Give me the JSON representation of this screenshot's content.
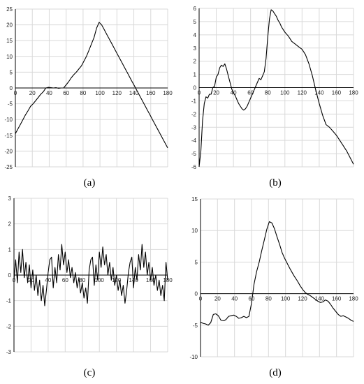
{
  "chart_data": [
    {
      "type": "line",
      "caption": "(a)",
      "xlim": [
        0,
        180
      ],
      "ylim": [
        -25,
        25
      ],
      "xticks": [
        0,
        20,
        40,
        60,
        80,
        100,
        120,
        140,
        160,
        180
      ],
      "yticks": [
        -25,
        -20,
        -15,
        -10,
        -5,
        0,
        5,
        10,
        15,
        20,
        25
      ],
      "grid": true,
      "series": [
        {
          "x": [
            0,
            3,
            6,
            9,
            12,
            15,
            18,
            21,
            24,
            27,
            30,
            33,
            36,
            39,
            42,
            45,
            48,
            51,
            54,
            57,
            60,
            63,
            66,
            69,
            72,
            75,
            78,
            81,
            84,
            87,
            90,
            93,
            96,
            99,
            102,
            105,
            108,
            111,
            114,
            117,
            120,
            123,
            126,
            129,
            132,
            135,
            138,
            141,
            144,
            147,
            150,
            153,
            156,
            159,
            162,
            165,
            168,
            171,
            174,
            177,
            180
          ],
          "y": [
            -14.5,
            -13,
            -11.5,
            -10,
            -8.5,
            -7.2,
            -5.8,
            -5,
            -4,
            -3,
            -2,
            -1.2,
            0,
            0.2,
            0.1,
            0,
            0.1,
            -0.1,
            0,
            0,
            1,
            2,
            3.2,
            4.2,
            5,
            6,
            7,
            8.5,
            10,
            12,
            14,
            16,
            19,
            20.8,
            20,
            18.5,
            17,
            15.5,
            14,
            12.5,
            11,
            9.5,
            8,
            6.5,
            5,
            3.5,
            2,
            0.5,
            -1,
            -2.5,
            -4,
            -5.5,
            -7,
            -8.5,
            -10,
            -11.5,
            -13,
            -14.5,
            -16,
            -17.5,
            -19
          ]
        }
      ]
    },
    {
      "type": "line",
      "caption": "(b)",
      "xlim": [
        0,
        180
      ],
      "ylim": [
        -6,
        6
      ],
      "xticks": [
        0,
        20,
        40,
        60,
        80,
        100,
        120,
        140,
        160,
        180
      ],
      "yticks": [
        -6,
        -5,
        -4,
        -3,
        -2,
        -1,
        0,
        1,
        2,
        3,
        4,
        5,
        6
      ],
      "grid": true,
      "series": [
        {
          "x": [
            0,
            2,
            4,
            6,
            8,
            10,
            12,
            14,
            16,
            18,
            20,
            22,
            24,
            26,
            28,
            30,
            32,
            34,
            36,
            38,
            40,
            42,
            44,
            46,
            48,
            50,
            52,
            54,
            56,
            58,
            60,
            62,
            64,
            66,
            68,
            70,
            72,
            74,
            76,
            78,
            80,
            82,
            84,
            86,
            88,
            90,
            92,
            94,
            96,
            98,
            100,
            104,
            108,
            112,
            116,
            120,
            124,
            128,
            132,
            136,
            140,
            144,
            148,
            152,
            156,
            160,
            164,
            168,
            172,
            176,
            180
          ],
          "y": [
            -6,
            -4.8,
            -2.5,
            -1.2,
            -0.7,
            -0.8,
            -0.5,
            -0.5,
            0,
            0.1,
            0.8,
            1.0,
            1.5,
            1.7,
            1.6,
            1.8,
            1.4,
            0.9,
            0.4,
            -0.1,
            -0.4,
            -0.6,
            -0.9,
            -1.2,
            -1.4,
            -1.6,
            -1.7,
            -1.6,
            -1.4,
            -1.1,
            -0.8,
            -0.5,
            -0.2,
            0.1,
            0.4,
            0.7,
            0.6,
            0.9,
            1.2,
            2.2,
            3.8,
            5.2,
            5.9,
            5.8,
            5.6,
            5.4,
            5.1,
            4.9,
            4.6,
            4.4,
            4.2,
            3.9,
            3.5,
            3.3,
            3.1,
            2.9,
            2.5,
            1.8,
            0.9,
            -0.2,
            -1.2,
            -2.1,
            -2.8,
            -3.0,
            -3.3,
            -3.6,
            -4.0,
            -4.4,
            -4.8,
            -5.3,
            -5.8
          ]
        }
      ]
    },
    {
      "type": "line",
      "caption": "(c)",
      "xlim": [
        0,
        180
      ],
      "ylim": [
        -3,
        3
      ],
      "xticks": [
        0,
        20,
        40,
        60,
        80,
        100,
        120,
        140,
        160,
        180
      ],
      "yticks": [
        -3,
        -2,
        -1,
        0,
        1,
        2,
        3
      ],
      "grid": true,
      "series": [
        {
          "x": [
            0,
            2,
            4,
            6,
            8,
            10,
            12,
            14,
            16,
            18,
            20,
            22,
            24,
            26,
            28,
            30,
            32,
            34,
            36,
            38,
            40,
            42,
            44,
            46,
            48,
            50,
            52,
            54,
            56,
            58,
            60,
            62,
            64,
            66,
            68,
            70,
            72,
            74,
            76,
            78,
            80,
            82,
            84,
            86,
            88,
            90,
            92,
            94,
            96,
            98,
            100,
            102,
            104,
            106,
            108,
            110,
            112,
            114,
            116,
            118,
            120,
            122,
            124,
            126,
            128,
            130,
            132,
            134,
            136,
            138,
            140,
            142,
            144,
            146,
            148,
            150,
            152,
            154,
            156,
            158,
            160,
            162,
            164,
            166,
            168,
            170,
            172,
            174,
            176,
            178,
            180
          ],
          "y": [
            -0.2,
            0.6,
            -0.3,
            0.9,
            0.1,
            1.0,
            -0.1,
            0.5,
            -0.3,
            0.4,
            -0.5,
            0.2,
            -0.6,
            0.0,
            -0.8,
            -0.2,
            -1.0,
            -0.4,
            -1.2,
            -0.6,
            0.1,
            0.6,
            0.7,
            -0.5,
            0.3,
            -0.3,
            0.8,
            0.2,
            1.2,
            0.4,
            0.9,
            0.1,
            0.6,
            -0.1,
            0.3,
            -0.3,
            0.1,
            -0.5,
            -0.1,
            -0.7,
            -0.3,
            -0.9,
            -0.5,
            -1.1,
            0.2,
            0.6,
            0.7,
            -0.4,
            0.4,
            -0.2,
            0.9,
            0.3,
            1.1,
            0.4,
            0.8,
            0.0,
            0.5,
            -0.2,
            0.3,
            -0.4,
            0.0,
            -0.6,
            -0.2,
            -0.8,
            -0.4,
            -1.1,
            -0.6,
            0.1,
            0.5,
            0.7,
            -0.5,
            0.3,
            -0.2,
            0.8,
            0.2,
            1.2,
            0.3,
            0.9,
            0.0,
            0.5,
            -0.2,
            0.3,
            -0.4,
            0.0,
            -0.6,
            -0.2,
            -0.8,
            -0.4,
            -1.0,
            0.5,
            -0.2
          ]
        }
      ]
    },
    {
      "type": "line",
      "caption": "(d)",
      "xlim": [
        0,
        180
      ],
      "ylim": [
        -10,
        15
      ],
      "xticks": [
        0,
        20,
        40,
        60,
        80,
        100,
        120,
        140,
        160,
        180
      ],
      "yticks": [
        -10,
        -5,
        0,
        5,
        10,
        15
      ],
      "grid": true,
      "series": [
        {
          "x": [
            0,
            3,
            6,
            9,
            12,
            15,
            18,
            21,
            24,
            27,
            30,
            33,
            36,
            39,
            42,
            45,
            48,
            51,
            54,
            57,
            60,
            63,
            66,
            69,
            72,
            75,
            78,
            81,
            84,
            87,
            90,
            93,
            96,
            99,
            102,
            105,
            108,
            111,
            114,
            117,
            120,
            123,
            126,
            129,
            132,
            135,
            138,
            141,
            144,
            147,
            150,
            153,
            156,
            159,
            162,
            165,
            168,
            171,
            174,
            177,
            180
          ],
          "y": [
            -4.5,
            -4.7,
            -4.8,
            -5.0,
            -4.6,
            -3.3,
            -3.2,
            -3.5,
            -4.2,
            -4.3,
            -4.1,
            -3.6,
            -3.5,
            -3.4,
            -3.6,
            -3.9,
            -3.8,
            -3.6,
            -3.8,
            -3.6,
            -1.5,
            1.5,
            3.5,
            5.0,
            6.8,
            8.5,
            10.2,
            11.4,
            11.2,
            10.3,
            9.0,
            7.8,
            6.5,
            5.6,
            4.8,
            4.0,
            3.3,
            2.6,
            2.0,
            1.3,
            0.7,
            0.2,
            -0.1,
            -0.3,
            -0.6,
            -0.9,
            -1.2,
            -1.4,
            -1.3,
            -1.0,
            -1.2,
            -1.7,
            -2.3,
            -2.8,
            -3.3,
            -3.6,
            -3.5,
            -3.7,
            -3.9,
            -4.2,
            -4.4
          ]
        }
      ]
    }
  ]
}
